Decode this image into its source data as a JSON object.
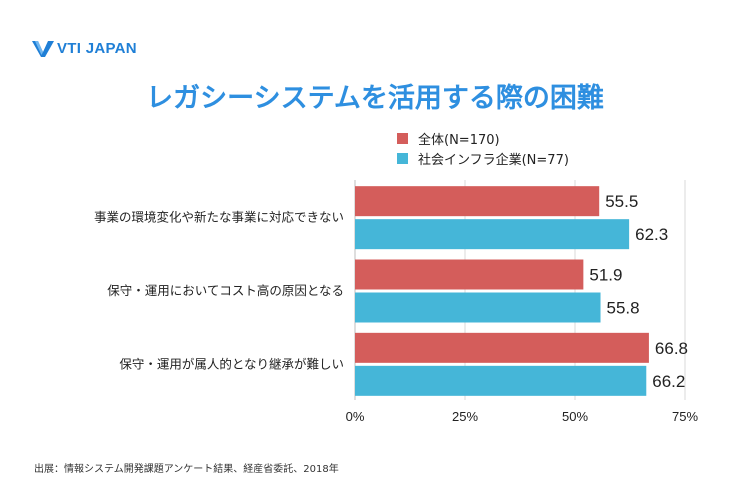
{
  "brand": {
    "logo_text": "VTI JAPAN",
    "logo_color": "#1f7fd6"
  },
  "title": "レガシーシステムを活用する際の困難",
  "legend": [
    {
      "label": "全体(N=170)",
      "color": "#d45d5b"
    },
    {
      "label": "社会インフラ企業(N=77)",
      "color": "#45b6d8"
    }
  ],
  "source": "出展：情報システム開発課題アンケート結果、経産省委託、2018年",
  "chart_data": {
    "type": "bar",
    "orientation": "horizontal",
    "categories": [
      "事業の環境変化や新たな事業に対応できない",
      "保守・運用においてコスト高の原因となる",
      "保守・運用が属人的となり継承が難しい"
    ],
    "series": [
      {
        "name": "全体(N=170)",
        "color": "#d45d5b",
        "values": [
          55.5,
          51.9,
          66.8
        ]
      },
      {
        "name": "社会インフラ企業(N=77)",
        "color": "#45b6d8",
        "values": [
          62.3,
          55.8,
          66.2
        ]
      }
    ],
    "xlim": [
      0,
      75
    ],
    "xticks": [
      "0%",
      "25%",
      "50%",
      "75%"
    ],
    "grid": true,
    "legend_position": "top"
  }
}
